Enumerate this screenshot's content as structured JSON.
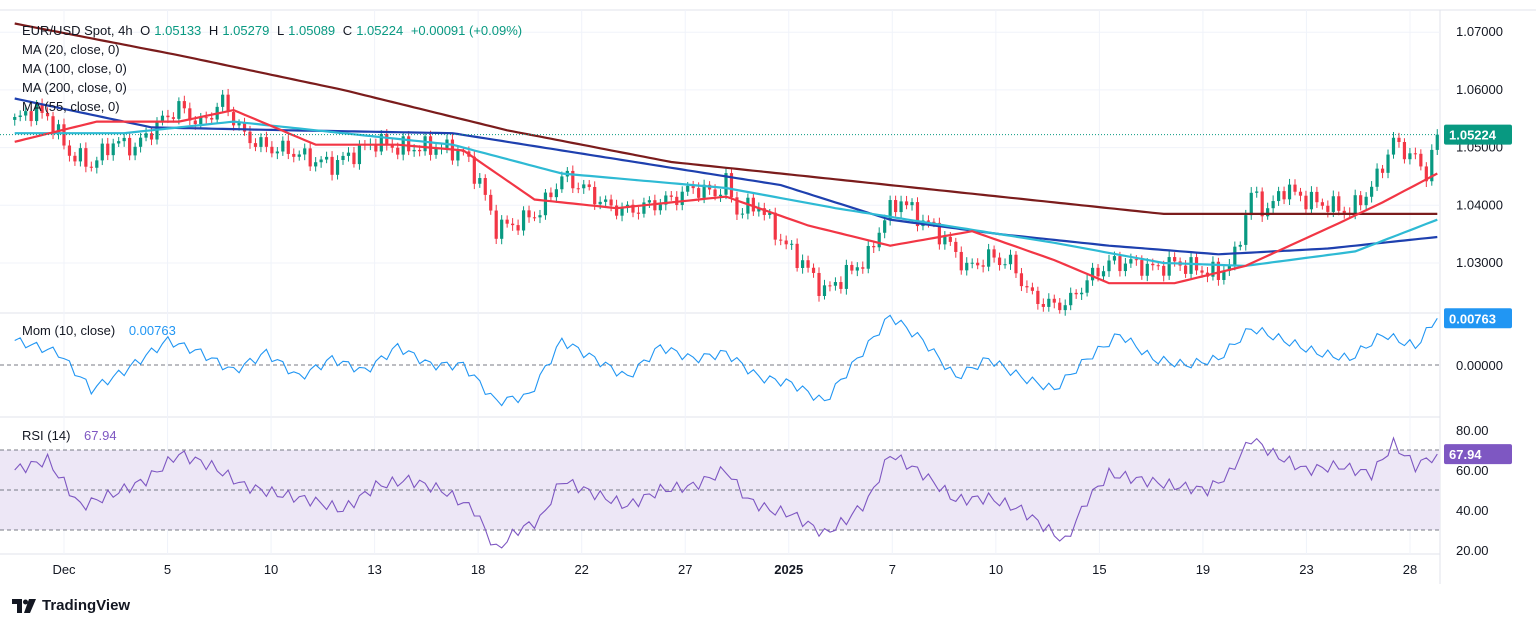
{
  "header": {
    "symbol": "EUR/USD Spot, 4h",
    "o_label": "O",
    "o": "1.05133",
    "h_label": "H",
    "h": "1.05279",
    "l_label": "L",
    "l": "1.05089",
    "c_label": "C",
    "c": "1.05224",
    "change": "+0.00091 (+0.09%)"
  },
  "legends": {
    "ma20": "MA (20, close, 0)",
    "ma100": "MA (100, close, 0)",
    "ma200": "MA (200, close, 0)",
    "ma55": "MA (55, close, 0)",
    "mom": "Mom (10, close)",
    "mom_value": "0.00763",
    "rsi": "RSI (14)",
    "rsi_value": "67.94"
  },
  "branding": {
    "name": "TradingView"
  },
  "colors": {
    "up": "#089981",
    "down": "#f23645",
    "ma20": "#f23645",
    "ma55": "#2ebad4",
    "ma100": "#1e40af",
    "ma200": "#7b1c1c",
    "mom": "#2196f3",
    "rsi": "#7e57c2",
    "rsi_band": "#ede7f6",
    "price_tag": "#089981"
  },
  "chart_data": [
    {
      "type": "candlestick",
      "title": "EUR/USD Spot, 4h",
      "ylim": [
        1.0215,
        1.0735
      ],
      "y_ticks": [
        "1.07000",
        "1.06000",
        "1.05000",
        "1.04000",
        "1.03000"
      ],
      "x_ticks": [
        "Dec",
        "5",
        "10",
        "13",
        "18",
        "22",
        "27",
        "2025",
        "7",
        "10",
        "15",
        "19",
        "23",
        "28"
      ],
      "last_price_label": "1.05224",
      "last_price": 1.05224,
      "anchors": [
        [
          0,
          1.0545
        ],
        [
          3,
          1.0565
        ],
        [
          6,
          1.0555
        ],
        [
          10,
          1.049
        ],
        [
          14,
          1.047
        ],
        [
          18,
          1.051
        ],
        [
          22,
          1.05
        ],
        [
          26,
          1.054
        ],
        [
          30,
          1.057
        ],
        [
          34,
          1.054
        ],
        [
          38,
          1.058
        ],
        [
          42,
          1.052
        ],
        [
          46,
          1.05
        ],
        [
          50,
          1.0495
        ],
        [
          54,
          1.048
        ],
        [
          58,
          1.047
        ],
        [
          62,
          1.049
        ],
        [
          66,
          1.051
        ],
        [
          70,
          1.05
        ],
        [
          74,
          1.05
        ],
        [
          78,
          1.05
        ],
        [
          82,
          1.049
        ],
        [
          85,
          1.044
        ],
        [
          88,
          1.036
        ],
        [
          92,
          1.037
        ],
        [
          96,
          1.039
        ],
        [
          100,
          1.045
        ],
        [
          104,
          1.043
        ],
        [
          108,
          1.04
        ],
        [
          112,
          1.039
        ],
        [
          116,
          1.04
        ],
        [
          120,
          1.041
        ],
        [
          124,
          1.043
        ],
        [
          128,
          1.042
        ],
        [
          130,
          1.044
        ],
        [
          132,
          1.039
        ],
        [
          136,
          1.04
        ],
        [
          140,
          1.034
        ],
        [
          144,
          1.03
        ],
        [
          148,
          1.025
        ],
        [
          152,
          1.028
        ],
        [
          156,
          1.031
        ],
        [
          159,
          1.038
        ],
        [
          162,
          1.041
        ],
        [
          165,
          1.038
        ],
        [
          168,
          1.036
        ],
        [
          171,
          1.033
        ],
        [
          174,
          1.029
        ],
        [
          178,
          1.031
        ],
        [
          182,
          1.03
        ],
        [
          186,
          1.024
        ],
        [
          190,
          1.0225
        ],
        [
          193,
          1.0235
        ],
        [
          196,
          1.027
        ],
        [
          200,
          1.03
        ],
        [
          204,
          1.03
        ],
        [
          208,
          1.029
        ],
        [
          212,
          1.03
        ],
        [
          216,
          1.029
        ],
        [
          220,
          1.028
        ],
        [
          223,
          1.031
        ],
        [
          226,
          1.042
        ],
        [
          229,
          1.039
        ],
        [
          232,
          1.043
        ],
        [
          236,
          1.041
        ],
        [
          240,
          1.04
        ],
        [
          244,
          1.039
        ],
        [
          248,
          1.043
        ],
        [
          252,
          1.051
        ],
        [
          256,
          1.048
        ],
        [
          258,
          1.0455
        ],
        [
          260,
          1.05224
        ]
      ],
      "series": [
        {
          "name": "MA 200",
          "points": [
            [
              0,
              1.0715
            ],
            [
              30,
              1.066
            ],
            [
              60,
              1.06
            ],
            [
              90,
              1.053
            ],
            [
              120,
              1.0475
            ],
            [
              150,
              1.0445
            ],
            [
              180,
              1.0415
            ],
            [
              210,
              1.0385
            ],
            [
              230,
              1.0385
            ],
            [
              250,
              1.0385
            ],
            [
              260,
              1.0385
            ]
          ]
        },
        {
          "name": "MA 100",
          "points": [
            [
              0,
              1.0585
            ],
            [
              25,
              1.0535
            ],
            [
              50,
              1.053
            ],
            [
              80,
              1.0525
            ],
            [
              100,
              1.0495
            ],
            [
              120,
              1.0465
            ],
            [
              140,
              1.0435
            ],
            [
              160,
              1.0375
            ],
            [
              180,
              1.035
            ],
            [
              200,
              1.033
            ],
            [
              220,
              1.0315
            ],
            [
              240,
              1.0325
            ],
            [
              260,
              1.0345
            ]
          ]
        },
        {
          "name": "MA 55",
          "points": [
            [
              0,
              1.0525
            ],
            [
              20,
              1.0525
            ],
            [
              40,
              1.0545
            ],
            [
              60,
              1.0525
            ],
            [
              80,
              1.0505
            ],
            [
              100,
              1.0455
            ],
            [
              130,
              1.043
            ],
            [
              150,
              1.0395
            ],
            [
              170,
              1.0365
            ],
            [
              190,
              1.0335
            ],
            [
              210,
              1.03
            ],
            [
              225,
              1.0295
            ],
            [
              245,
              1.032
            ],
            [
              260,
              1.0375
            ]
          ]
        },
        {
          "name": "MA 20",
          "points": [
            [
              0,
              1.051
            ],
            [
              15,
              1.0545
            ],
            [
              30,
              1.0545
            ],
            [
              40,
              1.0565
            ],
            [
              55,
              1.0505
            ],
            [
              70,
              1.0505
            ],
            [
              82,
              1.0495
            ],
            [
              95,
              1.041
            ],
            [
              110,
              1.0395
            ],
            [
              130,
              1.0415
            ],
            [
              145,
              1.0365
            ],
            [
              160,
              1.033
            ],
            [
              175,
              1.0355
            ],
            [
              190,
              1.0305
            ],
            [
              200,
              1.0265
            ],
            [
              212,
              1.0265
            ],
            [
              225,
              1.0295
            ],
            [
              240,
              1.036
            ],
            [
              250,
              1.0405
            ],
            [
              260,
              1.0455
            ]
          ]
        }
      ]
    },
    {
      "type": "line",
      "title": "Mom (10, close)",
      "ylim": [
        -0.008,
        0.008
      ],
      "y_ticks": [
        "0.00000"
      ],
      "zero_line": 0,
      "last_value_label": "0.00763",
      "values_anchor": [
        [
          0,
          0.004
        ],
        [
          8,
          0.002
        ],
        [
          14,
          -0.004
        ],
        [
          20,
          -0.001
        ],
        [
          28,
          0.004
        ],
        [
          34,
          0.002
        ],
        [
          40,
          -0.001
        ],
        [
          46,
          0.002
        ],
        [
          52,
          -0.002
        ],
        [
          58,
          0.001
        ],
        [
          64,
          -0.001
        ],
        [
          70,
          0.003
        ],
        [
          76,
          0.0
        ],
        [
          82,
          0.0
        ],
        [
          88,
          -0.006
        ],
        [
          94,
          -0.005
        ],
        [
          100,
          0.004
        ],
        [
          106,
          0.001
        ],
        [
          112,
          -0.002
        ],
        [
          118,
          0.003
        ],
        [
          124,
          0.001
        ],
        [
          130,
          0.002
        ],
        [
          136,
          -0.002
        ],
        [
          142,
          -0.003
        ],
        [
          148,
          -0.006
        ],
        [
          154,
          0.001
        ],
        [
          160,
          0.008
        ],
        [
          166,
          0.004
        ],
        [
          172,
          -0.002
        ],
        [
          178,
          0.001
        ],
        [
          184,
          -0.002
        ],
        [
          190,
          -0.004
        ],
        [
          196,
          0.001
        ],
        [
          202,
          0.005
        ],
        [
          208,
          0.001
        ],
        [
          214,
          0.0
        ],
        [
          220,
          0.001
        ],
        [
          226,
          0.006
        ],
        [
          232,
          0.004
        ],
        [
          238,
          0.002
        ],
        [
          244,
          0.001
        ],
        [
          250,
          0.005
        ],
        [
          256,
          0.003
        ],
        [
          260,
          0.00763
        ]
      ]
    },
    {
      "type": "line",
      "title": "RSI (14)",
      "ylim": [
        15,
        85
      ],
      "y_ticks": [
        "80.00",
        "60.00",
        "40.00",
        "20.00"
      ],
      "bands": [
        70,
        50,
        30
      ],
      "last_value_label": "67.94",
      "values_anchor": [
        [
          0,
          60
        ],
        [
          6,
          65
        ],
        [
          12,
          42
        ],
        [
          18,
          48
        ],
        [
          24,
          55
        ],
        [
          30,
          68
        ],
        [
          36,
          62
        ],
        [
          42,
          52
        ],
        [
          48,
          48
        ],
        [
          54,
          45
        ],
        [
          60,
          40
        ],
        [
          66,
          52
        ],
        [
          72,
          55
        ],
        [
          78,
          50
        ],
        [
          84,
          40
        ],
        [
          88,
          20
        ],
        [
          92,
          30
        ],
        [
          96,
          35
        ],
        [
          100,
          55
        ],
        [
          106,
          48
        ],
        [
          112,
          42
        ],
        [
          118,
          50
        ],
        [
          124,
          52
        ],
        [
          130,
          60
        ],
        [
          134,
          45
        ],
        [
          138,
          40
        ],
        [
          142,
          38
        ],
        [
          148,
          28
        ],
        [
          152,
          35
        ],
        [
          156,
          45
        ],
        [
          160,
          68
        ],
        [
          166,
          58
        ],
        [
          172,
          45
        ],
        [
          178,
          46
        ],
        [
          184,
          40
        ],
        [
          188,
          32
        ],
        [
          192,
          24
        ],
        [
          196,
          45
        ],
        [
          200,
          58
        ],
        [
          206,
          55
        ],
        [
          212,
          52
        ],
        [
          218,
          50
        ],
        [
          222,
          58
        ],
        [
          226,
          76
        ],
        [
          230,
          68
        ],
        [
          236,
          60
        ],
        [
          242,
          62
        ],
        [
          248,
          58
        ],
        [
          252,
          73
        ],
        [
          256,
          62
        ],
        [
          260,
          67.94
        ]
      ]
    }
  ]
}
